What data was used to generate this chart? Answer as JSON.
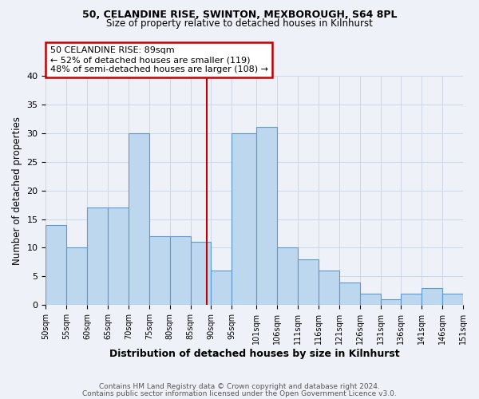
{
  "title1": "50, CELANDINE RISE, SWINTON, MEXBOROUGH, S64 8PL",
  "title2": "Size of property relative to detached houses in Kilnhurst",
  "xlabel": "Distribution of detached houses by size in Kilnhurst",
  "ylabel": "Number of detached properties",
  "bins": [
    50,
    55,
    60,
    65,
    70,
    75,
    80,
    85,
    90,
    95,
    101,
    106,
    111,
    116,
    121,
    126,
    131,
    136,
    141,
    146,
    151
  ],
  "counts": [
    14,
    10,
    17,
    17,
    30,
    12,
    12,
    11,
    6,
    30,
    31,
    10,
    8,
    6,
    4,
    2,
    1,
    2,
    3,
    2
  ],
  "bar_color": "#bdd7ee",
  "bar_edge_color": "#5b9bd5",
  "vline_x": 89,
  "vline_color": "#c00000",
  "annotation_title": "50 CELANDINE RISE: 89sqm",
  "annotation_line1": "← 52% of detached houses are smaller (119)",
  "annotation_line2": "48% of semi-detached houses are larger (108) →",
  "annotation_box_color": "#c00000",
  "annotation_bg": "#ffffff",
  "ylim": [
    0,
    40
  ],
  "yticks": [
    0,
    5,
    10,
    15,
    20,
    25,
    30,
    35,
    40
  ],
  "tick_labels": [
    "50sqm",
    "55sqm",
    "60sqm",
    "65sqm",
    "70sqm",
    "75sqm",
    "80sqm",
    "85sqm",
    "90sqm",
    "95sqm",
    "101sqm",
    "106sqm",
    "111sqm",
    "116sqm",
    "121sqm",
    "126sqm",
    "131sqm",
    "136sqm",
    "141sqm",
    "146sqm",
    "151sqm"
  ],
  "footer1": "Contains HM Land Registry data © Crown copyright and database right 2024.",
  "footer2": "Contains public sector information licensed under the Open Government Licence v3.0.",
  "bg_color": "#eef2f8",
  "grid_color": "#d0d8e8"
}
